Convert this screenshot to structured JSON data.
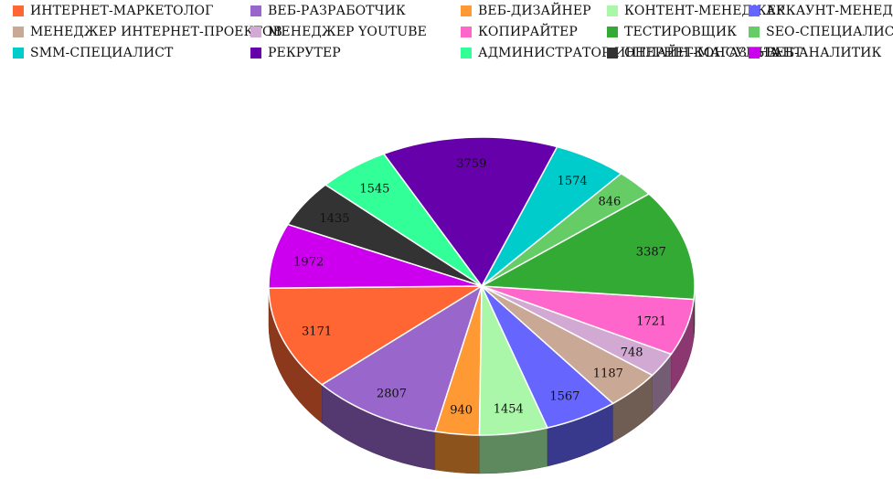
{
  "chart_data": {
    "type": "pie",
    "title": "",
    "three_d": true,
    "legend_placement": "top",
    "categories": [
      "ИНТЕРНЕТ-МАРКЕТОЛОГ",
      "ВЕБ-РАЗРАБОТЧИК",
      "ВЕБ-ДИЗАЙНЕР",
      "КОНТЕНТ-МЕНЕДЖЕР",
      "АККАУНТ-МЕНЕДЖЕР",
      "МЕНЕДЖЕР ИНТЕРНЕТ-ПРОЕКТОВ",
      "МЕНЕДЖЕР YOUTUBE",
      "КОПИРАЙТЕР",
      "ТЕСТИРОВЩИК",
      "SEO-СПЕЦИАЛИСТ",
      "SMM-СПЕЦИАЛИСТ",
      "РЕКРУТЕР",
      "АДМИНИСТРАТОР ИНТЕРНЕТ-МАГАЗИНА",
      "ОНЛАЙН-КОНСУЛЬТАНТ",
      "ВЕБ-АНАЛИТИК"
    ],
    "values": [
      3171,
      2807,
      940,
      1454,
      1567,
      1187,
      748,
      1721,
      3387,
      846,
      1574,
      3759,
      1545,
      1435,
      1972
    ],
    "value_labels": [
      "3171",
      "2807",
      "940",
      "1454",
      "1567",
      "1187",
      "748",
      "1721",
      "3387",
      "846",
      "1574",
      "3759",
      "1545",
      "1435",
      "1972"
    ],
    "colors": [
      "#ff6633",
      "#9966cc",
      "#ff9933",
      "#aaf7aa",
      "#6666ff",
      "#c9a996",
      "#d2a9d2",
      "#ff66cc",
      "#33aa33",
      "#66cc66",
      "#00cccc",
      "#6600aa",
      "#33ff99",
      "#333333",
      "#cc00ee"
    ]
  }
}
